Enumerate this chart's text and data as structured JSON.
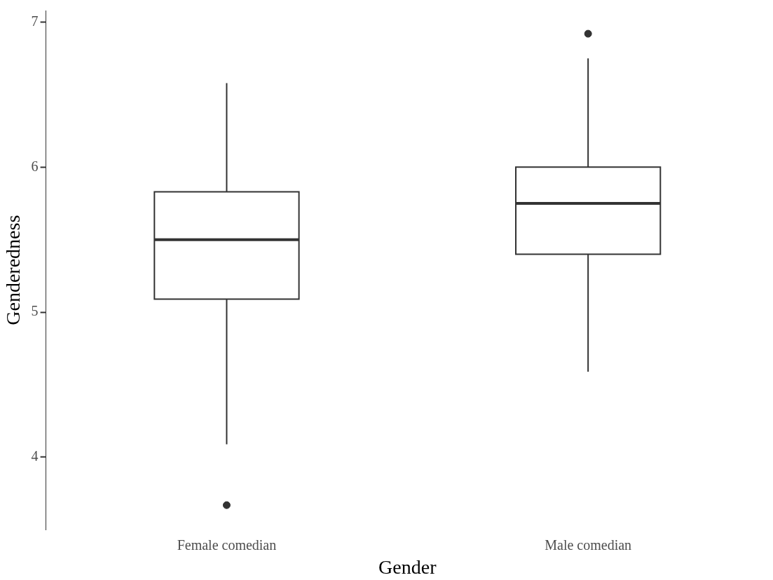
{
  "chart_data": {
    "type": "box",
    "xlabel": "Gender",
    "ylabel": "Genderedness",
    "categories": [
      "Female comedian",
      "Male comedian"
    ],
    "boxes": [
      {
        "low": 4.09,
        "q1": 5.09,
        "median": 5.5,
        "q3": 5.83,
        "high": 6.58,
        "outliers": [
          3.67
        ]
      },
      {
        "low": 4.59,
        "q1": 5.4,
        "median": 5.75,
        "q3": 6.0,
        "high": 6.75,
        "outliers": [
          6.92
        ]
      }
    ],
    "color": "#333333",
    "ylim": [
      3.5,
      7.08
    ],
    "yticks": [
      4,
      5,
      6,
      7
    ],
    "grid": false,
    "legend": false
  }
}
